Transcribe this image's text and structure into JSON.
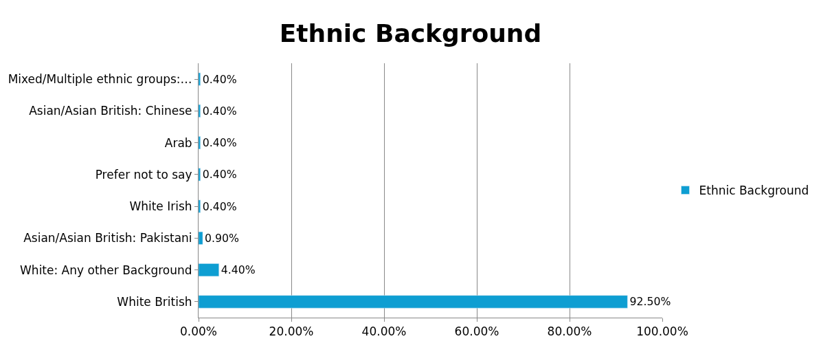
{
  "chart_data": {
    "type": "bar",
    "orientation": "horizontal",
    "title": "Ethnic Background",
    "categories": [
      "Mixed/Multiple ethnic groups:…",
      "Asian/Asian British: Chinese",
      "Arab",
      "Prefer not to say",
      "White Irish",
      "Asian/Asian British: Pakistani",
      "White: Any other Background",
      "White British"
    ],
    "series": [
      {
        "name": "Ethnic Background",
        "color": "#0e9ed2",
        "values": [
          0.4,
          0.4,
          0.4,
          0.4,
          0.4,
          0.9,
          4.4,
          92.5
        ],
        "value_labels": [
          "0.40%",
          "0.40%",
          "0.40%",
          "0.40%",
          "0.40%",
          "0.90%",
          "4.40%",
          "92.50%"
        ]
      }
    ],
    "xlim": [
      0,
      100
    ],
    "xticks": [
      {
        "value": 0,
        "label": "0.00%"
      },
      {
        "value": 20,
        "label": "20.00%"
      },
      {
        "value": 40,
        "label": "40.00%"
      },
      {
        "value": 60,
        "label": "60.00%"
      },
      {
        "value": 80,
        "label": "80.00%"
      },
      {
        "value": 100,
        "label": "100.00%"
      }
    ],
    "grid": "x",
    "legend": "right"
  }
}
